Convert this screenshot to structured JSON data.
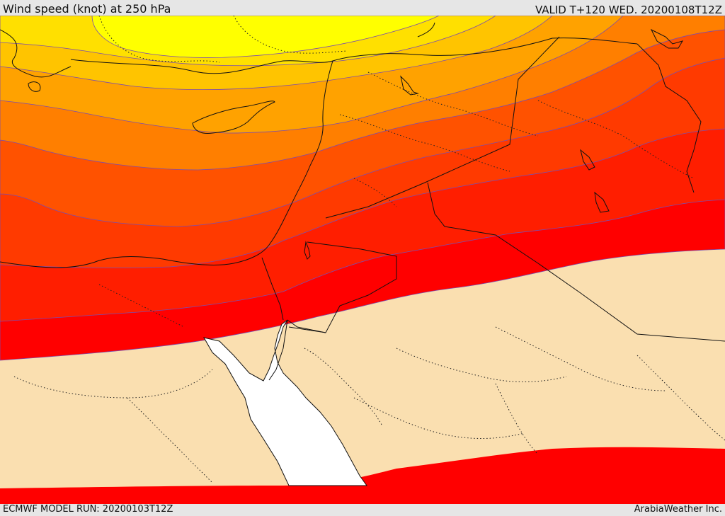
{
  "header": {
    "title": "Wind speed (knot) at 250 hPa",
    "valid": "VALID T+120 WED. 20200108T12Z"
  },
  "footer": {
    "model_run": "ECMWF MODEL RUN: 20200103T12Z",
    "credit": "ArabiaWeather Inc."
  },
  "map": {
    "region": "Eastern Mediterranean / Middle East",
    "bands_top_to_bottom_colors": [
      "#ffff00",
      "#ffe000",
      "#ffc400",
      "#ffa200",
      "#ff7f00",
      "#ff5200",
      "#ff3a00",
      "#ff1e00",
      "#ff0000",
      "#fadfb0",
      "#ff0000"
    ],
    "sea_color": "#ffffff",
    "land_below_threshold_color": "#fadfb0"
  }
}
